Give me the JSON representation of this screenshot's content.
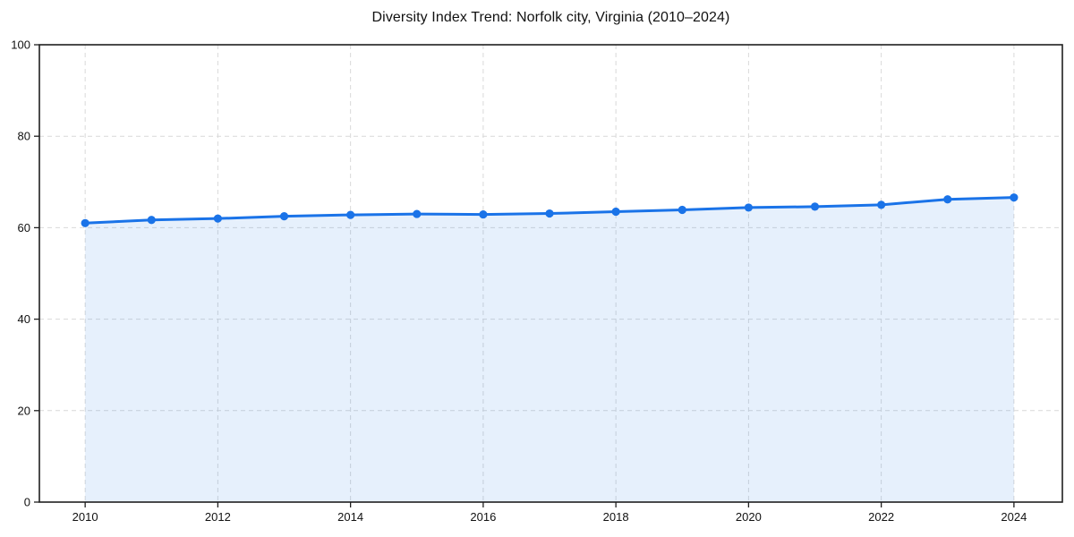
{
  "chart_data": {
    "type": "line",
    "title": "Diversity Index Trend: Norfolk city, Virginia (2010–2024)",
    "x": [
      2010,
      2011,
      2012,
      2013,
      2014,
      2015,
      2016,
      2017,
      2018,
      2019,
      2020,
      2021,
      2022,
      2023,
      2024
    ],
    "values": [
      61.0,
      61.7,
      62.0,
      62.5,
      62.8,
      63.0,
      62.9,
      63.1,
      63.5,
      63.9,
      64.4,
      64.6,
      65.0,
      66.2,
      66.6
    ],
    "xlabel": "",
    "ylabel": "",
    "xlim": [
      2009.31,
      2024.73
    ],
    "ylim": [
      0,
      100
    ],
    "x_ticks": [
      2010,
      2012,
      2014,
      2016,
      2018,
      2020,
      2022,
      2024
    ],
    "y_ticks": [
      0,
      20,
      40,
      60,
      80,
      100
    ],
    "grid": true,
    "grid_style": "dashed",
    "legend_position": "none",
    "marker": "circle",
    "area_fill": true,
    "colors": {
      "line": "#1a73e8",
      "marker": "#1a73e8",
      "fill": "#1a73e8",
      "fill_opacity": 0.11,
      "grid": "#d9d9d9",
      "axis": "#1f1f1f",
      "text": "#111111",
      "background": "#ffffff"
    }
  }
}
